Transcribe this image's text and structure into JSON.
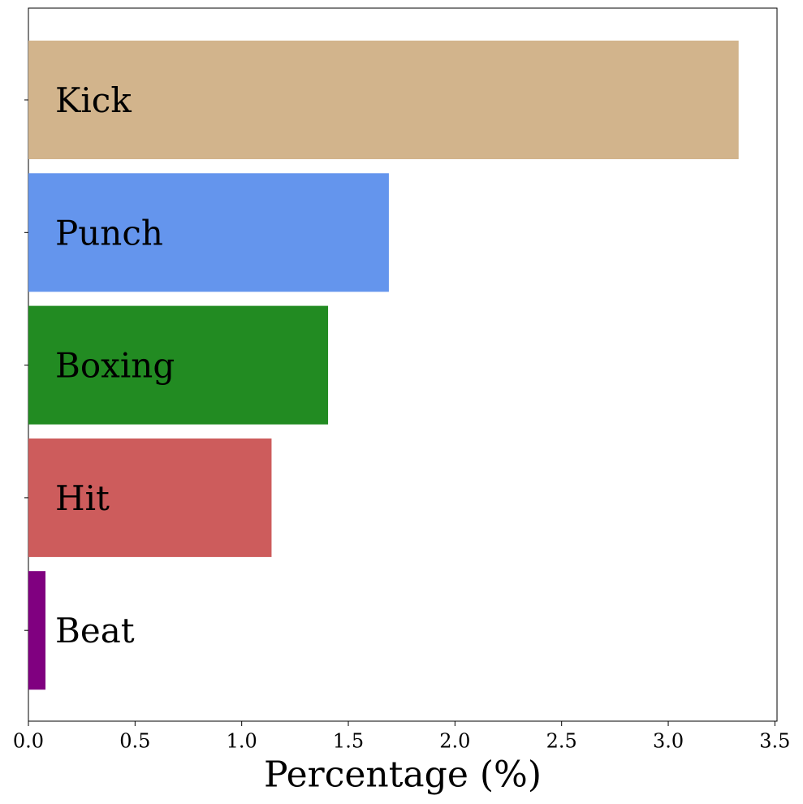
{
  "chart_data": {
    "type": "barh",
    "x_label": "Percentage (%)",
    "categories": [
      "Kick",
      "Punch",
      "Boxing",
      "Hit",
      "Beat"
    ],
    "values": [
      3.33,
      1.69,
      1.405,
      1.14,
      0.08
    ],
    "colors": [
      "#d2b48c",
      "#6495ed",
      "#228b22",
      "#cd5c5c",
      "#800080"
    ],
    "xlim": [
      0,
      3.51
    ],
    "xticks": [
      {
        "value": 0,
        "label": "0.0"
      },
      0.5,
      {
        "value": 1,
        "label": "1.0"
      },
      1.5,
      {
        "value": 2,
        "label": "2.0"
      },
      2.5,
      {
        "value": 3,
        "label": "3.0"
      },
      3.5
    ]
  }
}
